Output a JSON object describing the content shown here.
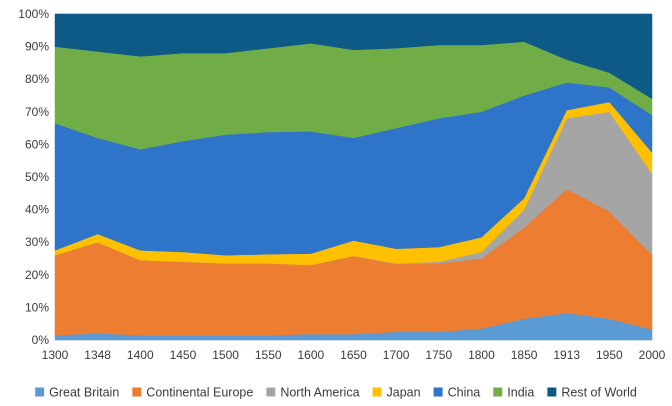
{
  "chart_data": {
    "type": "area",
    "stacked": true,
    "percent": true,
    "x": [
      "1300",
      "1348",
      "1400",
      "1450",
      "1500",
      "1550",
      "1600",
      "1650",
      "1700",
      "1750",
      "1800",
      "1850",
      "1913",
      "1950",
      "2000"
    ],
    "ylim": [
      0,
      100
    ],
    "yticks": [
      0,
      10,
      20,
      30,
      40,
      50,
      60,
      70,
      80,
      90,
      100
    ],
    "ytick_labels": [
      "0%",
      "10%",
      "20%",
      "30%",
      "40%",
      "50%",
      "60%",
      "70%",
      "80%",
      "90%",
      "100%"
    ],
    "legend_position": "bottom",
    "series": [
      {
        "name": "Great Britain",
        "color": "#5b9bd5",
        "values": [
          1.5,
          2,
          1.5,
          1.5,
          1.5,
          1.5,
          1.8,
          1.8,
          2.5,
          2.5,
          3.5,
          6.5,
          8.3,
          6.5,
          3.2
        ]
      },
      {
        "name": "Continental Europe",
        "color": "#ed7d31",
        "values": [
          24.5,
          28,
          23,
          22.5,
          22,
          22,
          21.2,
          24,
          20.8,
          21,
          21.5,
          28,
          38,
          33,
          23
        ]
      },
      {
        "name": "North America",
        "color": "#a5a5a5",
        "values": [
          0,
          0,
          0,
          0,
          0,
          0,
          0,
          0,
          0.2,
          0.5,
          2,
          5.5,
          21.7,
          30.5,
          24.8
        ]
      },
      {
        "name": "Japan",
        "color": "#ffc000",
        "values": [
          1.5,
          2.5,
          3,
          3,
          2.5,
          2.8,
          3.5,
          4.7,
          4.5,
          4.5,
          4.5,
          3.5,
          2.5,
          3,
          6.5
        ]
      },
      {
        "name": "China",
        "color": "#2e75c9",
        "values": [
          39,
          29.5,
          31,
          34,
          37,
          37.5,
          37.5,
          31.5,
          37,
          39.5,
          38.5,
          31.5,
          8.5,
          4.5,
          11.5
        ]
      },
      {
        "name": "India",
        "color": "#70ad47",
        "values": [
          23.5,
          26.5,
          28.5,
          27,
          25,
          25.7,
          27,
          27,
          24.5,
          22.5,
          20.5,
          16.5,
          7,
          4.5,
          5
        ]
      },
      {
        "name": "Rest of World",
        "color": "#0e5a86",
        "values": [
          10,
          11.5,
          13,
          12,
          12,
          10.5,
          9,
          11,
          10.5,
          9.5,
          9.5,
          8.5,
          14,
          18,
          26
        ]
      }
    ]
  }
}
